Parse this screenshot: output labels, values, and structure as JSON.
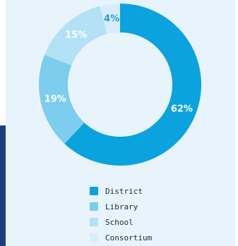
{
  "chart_data": {
    "type": "pie",
    "donut": true,
    "categories": [
      "District",
      "Library",
      "School",
      "Consortium"
    ],
    "values": [
      62,
      19,
      15,
      4
    ],
    "labels": [
      "62%",
      "19%",
      "15%",
      "4%"
    ],
    "colors": [
      "#0aa3de",
      "#7dcdee",
      "#b3e1f5",
      "#d7eefa"
    ],
    "label_colors": [
      "#ffffff",
      "#ffffff",
      "#ffffff",
      "#1e9fd6"
    ],
    "legend_position": "bottom",
    "legend": [
      {
        "label": "District",
        "color": "#0aa3de"
      },
      {
        "label": "Library",
        "color": "#7dcdee"
      },
      {
        "label": "School",
        "color": "#b3e1f5"
      },
      {
        "label": "Consortium",
        "color": "#d7eefa"
      }
    ]
  },
  "colors": {
    "panel_background": "#e8f4fb",
    "edge_bar": "#1f3f7a"
  }
}
